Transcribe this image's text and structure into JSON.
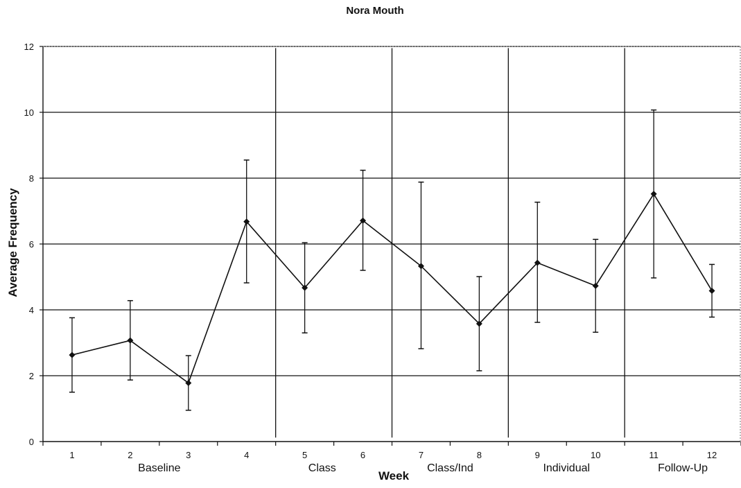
{
  "chart_data": {
    "type": "line",
    "title": "Nora Mouth",
    "xlabel": "Week",
    "ylabel": "Average Frequency",
    "x": [
      1,
      2,
      3,
      4,
      5,
      6,
      7,
      8,
      9,
      10,
      11,
      12
    ],
    "x_tick_labels": [
      "1",
      "2",
      "3",
      "4",
      "5",
      "6",
      "7",
      "8",
      "9",
      "10",
      "11",
      "12"
    ],
    "y_ticks": [
      "0",
      "2",
      "4",
      "6",
      "8",
      "10",
      "12"
    ],
    "ylim": [
      0,
      12
    ],
    "grid": "horizontal",
    "series": [
      {
        "values": [
          2.63,
          3.07,
          1.78,
          6.68,
          4.67,
          6.71,
          5.33,
          3.58,
          5.43,
          4.73,
          7.52,
          4.58
        ],
        "error_low": [
          1.5,
          1.87,
          0.95,
          4.82,
          3.3,
          5.2,
          2.82,
          2.15,
          3.62,
          3.32,
          4.97,
          3.78
        ],
        "error_high": [
          3.76,
          4.28,
          2.61,
          8.55,
          6.04,
          8.24,
          7.88,
          5.01,
          7.27,
          6.14,
          10.07,
          5.38
        ]
      }
    ],
    "phase_dividers": [
      4.5,
      6.5,
      8.5,
      10.5
    ],
    "phases": [
      {
        "label": "Baseline",
        "center": 2.5
      },
      {
        "label": "Class",
        "center": 5.3
      },
      {
        "label": "Class/Ind",
        "center": 7.5
      },
      {
        "label": "Individual",
        "center": 9.5
      },
      {
        "label": "Follow-Up",
        "center": 11.5
      }
    ]
  }
}
